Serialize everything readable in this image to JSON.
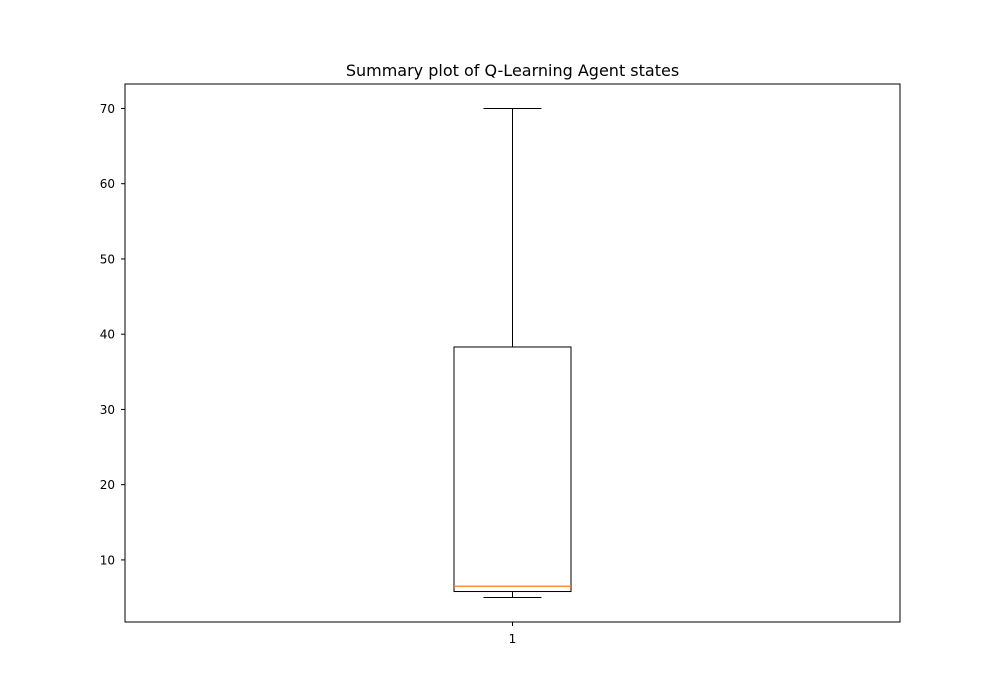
{
  "chart_data": {
    "type": "box",
    "title": "Summary plot of Q-Learning Agent states",
    "xlabel": "",
    "ylabel": "",
    "categories": [
      "1"
    ],
    "boxes": [
      {
        "category": "1",
        "whisker_low": 5,
        "q1": 5.8,
        "median": 6.5,
        "q3": 38.3,
        "whisker_high": 70
      }
    ],
    "ylim": [
      1.75,
      73.25
    ],
    "yticks": [
      10,
      20,
      30,
      40,
      50,
      60,
      70
    ],
    "grid": false,
    "colors": {
      "box": "#000000",
      "median": "#ff7f0e",
      "axes": "#000000"
    }
  }
}
